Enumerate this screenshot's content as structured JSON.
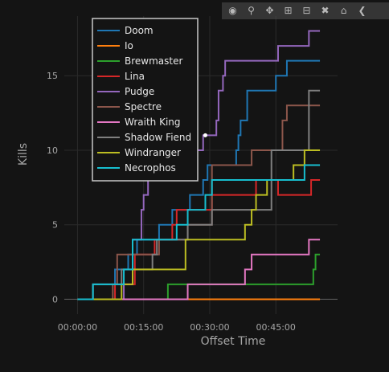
{
  "chart_data": {
    "type": "line",
    "line_shape": "step",
    "xlabel": "Offset Time",
    "ylabel": "Kills",
    "x_ticks": [
      {
        "value": 0,
        "label": "00:00:00"
      },
      {
        "value": 15,
        "label": "00:15:00"
      },
      {
        "value": 30,
        "label": "00:30:00"
      },
      {
        "value": 45,
        "label": "00:45:00"
      }
    ],
    "y_ticks": [
      0,
      5,
      10,
      15
    ],
    "xlim": [
      -3,
      59
    ],
    "ylim": [
      -1,
      19
    ],
    "grid": true,
    "legend_position": "top-left",
    "background_color": "#141414",
    "series": [
      {
        "name": "Doom",
        "color": "#1f77b4",
        "x": [
          0,
          3.5,
          7.5,
          8.5,
          11.5,
          13.5,
          18.5,
          19.5,
          21.5,
          24.5,
          25.5,
          28.5,
          29.5,
          36.0,
          36.5,
          37.0,
          38.5,
          44.0,
          45.0,
          47.5,
          48.5,
          55.0
        ],
        "y": [
          0,
          1,
          1,
          2,
          3,
          4,
          5,
          5,
          6,
          6,
          7,
          8,
          9,
          10,
          11,
          12,
          14,
          14,
          15,
          16,
          16,
          16
        ]
      },
      {
        "name": "Io",
        "color": "#ff7f0e",
        "x": [
          0,
          55.0
        ],
        "y": [
          0,
          0
        ]
      },
      {
        "name": "Brewmaster",
        "color": "#2ca02c",
        "x": [
          0,
          20.5,
          25.0,
          53.5,
          54.0,
          55.0
        ],
        "y": [
          0,
          1,
          1,
          2,
          3,
          3
        ]
      },
      {
        "name": "Lina",
        "color": "#d62728",
        "x": [
          0,
          8.5,
          13.0,
          17.5,
          21.5,
          22.5,
          30.5,
          35.5,
          40.5,
          45.5,
          53.0,
          55.0
        ],
        "y": [
          0,
          1,
          3,
          4,
          5,
          6,
          7,
          7,
          8,
          7,
          8,
          8
        ]
      },
      {
        "name": "Pudge",
        "color": "#9467bd",
        "x": [
          0,
          10.5,
          12.5,
          14.5,
          15.0,
          16.0,
          16.5,
          17.5,
          18.5,
          24.0,
          28.5,
          31.5,
          32.0,
          33.0,
          33.5,
          34.5,
          45.5,
          47.5,
          52.5,
          55.0
        ],
        "y": [
          0,
          1,
          4,
          6,
          7,
          8,
          8,
          9,
          10,
          10,
          11,
          12,
          14,
          15,
          16,
          16,
          17,
          17,
          18,
          18
        ],
        "highlight": {
          "x": 29.0,
          "y": 11
        }
      },
      {
        "name": "Spectre",
        "color": "#8c564b",
        "x": [
          0,
          8.0,
          9.0,
          12.5,
          18.5,
          25.0,
          30.5,
          39.5,
          42.0,
          46.5,
          47.5,
          52.5,
          55.0
        ],
        "y": [
          0,
          1,
          3,
          3,
          4,
          5,
          9,
          10,
          10,
          12,
          13,
          13,
          13
        ]
      },
      {
        "name": "Wraith King",
        "color": "#e377c2",
        "x": [
          0,
          25.0,
          38.0,
          39.5,
          47.5,
          52.5,
          55.0
        ],
        "y": [
          0,
          1,
          2,
          3,
          3,
          4,
          4
        ]
      },
      {
        "name": "Shadow Fiend",
        "color": "#7f7f7f",
        "x": [
          0,
          3.5,
          9.0,
          10.0,
          17.0,
          18.0,
          25.0,
          30.5,
          40.0,
          44.0,
          45.0,
          52.5,
          55.0
        ],
        "y": [
          0,
          1,
          1,
          2,
          3,
          4,
          5,
          6,
          6,
          10,
          10,
          14,
          14
        ]
      },
      {
        "name": "Windranger",
        "color": "#bcbd22",
        "x": [
          0,
          10.0,
          12.5,
          24.5,
          38.0,
          39.5,
          40.5,
          43.0,
          47.0,
          49.0,
          51.5,
          55.0
        ],
        "y": [
          0,
          1,
          2,
          4,
          5,
          6,
          7,
          8,
          8,
          9,
          10,
          10
        ]
      },
      {
        "name": "Necrophos",
        "color": "#17becf",
        "x": [
          0,
          3.5,
          7.0,
          10.5,
          12.5,
          19.0,
          22.5,
          25.0,
          29.0,
          30.5,
          34.0,
          51.5,
          55.0
        ],
        "y": [
          0,
          1,
          1,
          2,
          4,
          4,
          5,
          6,
          7,
          8,
          8,
          9,
          9
        ]
      }
    ]
  },
  "modebar": {
    "icons": [
      "camera-icon",
      "zoom-icon",
      "pan-icon",
      "zoom-in-icon",
      "zoom-out-icon",
      "autoscale-icon",
      "home-icon",
      "back-icon"
    ]
  }
}
